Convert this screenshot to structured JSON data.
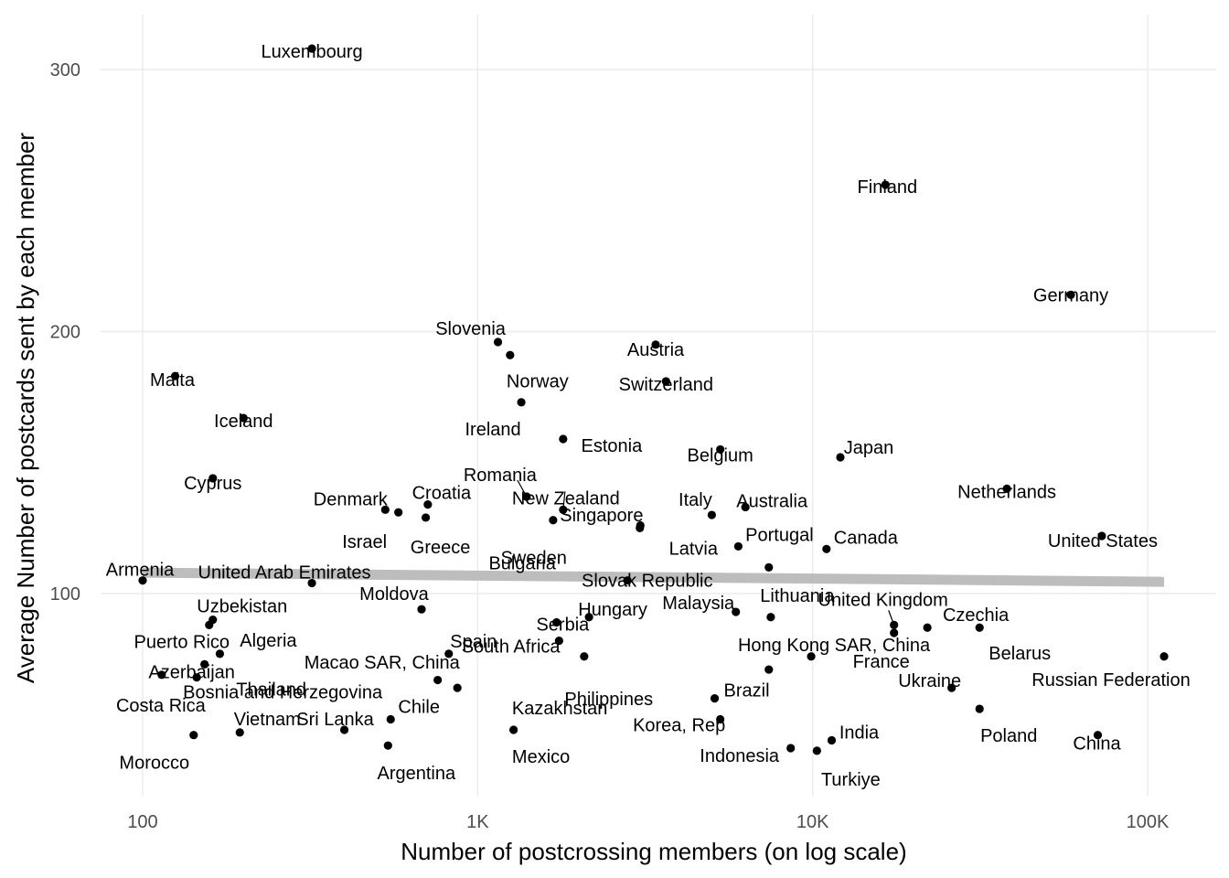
{
  "chart_data": {
    "type": "scatter",
    "xlabel": "Number of postcrossing members (on log scale)",
    "ylabel": "Average Number of postcards sent by each member",
    "x_scale": "log10",
    "xlim": [
      80,
      130000
    ],
    "ylim": [
      22,
      320
    ],
    "x_ticks": [
      {
        "value": 100,
        "label": "100"
      },
      {
        "value": 1000,
        "label": "1K"
      },
      {
        "value": 10000,
        "label": "10K"
      },
      {
        "value": 100000,
        "label": "100K"
      }
    ],
    "y_ticks": [
      {
        "value": 100,
        "label": "100"
      },
      {
        "value": 200,
        "label": "200"
      },
      {
        "value": 300,
        "label": "300"
      }
    ],
    "grid": true,
    "legend": "none",
    "trend_line": {
      "x": [
        100,
        112000
      ],
      "y": [
        108,
        104.5
      ],
      "color": "#bdbdbd"
    },
    "points": [
      {
        "name": "Luxembourg",
        "x": 320,
        "y": 308
      },
      {
        "name": "Finland",
        "x": 16500,
        "y": 256
      },
      {
        "name": "Germany",
        "x": 59000,
        "y": 214
      },
      {
        "name": "Slovenia",
        "x": 1150,
        "y": 196
      },
      {
        "name": "Austria",
        "x": 3400,
        "y": 195
      },
      {
        "name": "Norway",
        "x": 1250,
        "y": 191
      },
      {
        "name": "Malta",
        "x": 125,
        "y": 183
      },
      {
        "name": "Switzerland",
        "x": 3650,
        "y": 181
      },
      {
        "name": "Ireland",
        "x": 1350,
        "y": 173
      },
      {
        "name": "Iceland",
        "x": 200,
        "y": 167
      },
      {
        "name": "Estonia",
        "x": 1800,
        "y": 159
      },
      {
        "name": "Belgium",
        "x": 5300,
        "y": 155
      },
      {
        "name": "Japan",
        "x": 12100,
        "y": 152
      },
      {
        "name": "Cyprus",
        "x": 162,
        "y": 144
      },
      {
        "name": "Netherlands",
        "x": 38000,
        "y": 140
      },
      {
        "name": "Romania",
        "x": 1400,
        "y": 137
      },
      {
        "name": "Croatia",
        "x": 710,
        "y": 134
      },
      {
        "name": "New Zealand",
        "x": 1800,
        "y": 132
      },
      {
        "name": "Australia",
        "x": 6300,
        "y": 133
      },
      {
        "name": "Denmark",
        "x": 530,
        "y": 132
      },
      {
        "name": "Israel",
        "x": 580,
        "y": 131
      },
      {
        "name": "Italy",
        "x": 5000,
        "y": 130
      },
      {
        "name": "Greece",
        "x": 700,
        "y": 129
      },
      {
        "name": "Singapore",
        "x": 1680,
        "y": 128
      },
      {
        "name": "Latvia",
        "x": 3060,
        "y": 126
      },
      {
        "name": "Sweden",
        "x": 3050,
        "y": 125
      },
      {
        "name": "United States",
        "x": 73000,
        "y": 122
      },
      {
        "name": "Portugal",
        "x": 6000,
        "y": 118
      },
      {
        "name": "Canada",
        "x": 11000,
        "y": 117
      },
      {
        "name": "Slovak Republic",
        "x": 7400,
        "y": 110
      },
      {
        "name": "Armenia",
        "x": 100,
        "y": 105
      },
      {
        "name": "United Arab Emirates",
        "x": 320,
        "y": 104
      },
      {
        "name": "Bulgaria",
        "x": 2800,
        "y": 105
      },
      {
        "name": "Moldova",
        "x": 680,
        "y": 94
      },
      {
        "name": "Malaysia",
        "x": 5900,
        "y": 93
      },
      {
        "name": "Hungary",
        "x": 2150,
        "y": 91
      },
      {
        "name": "Lithuania",
        "x": 7500,
        "y": 91
      },
      {
        "name": "Uzbekistan",
        "x": 162,
        "y": 90
      },
      {
        "name": "Puerto Rico",
        "x": 158,
        "y": 88
      },
      {
        "name": "United Kingdom",
        "x": 17500,
        "y": 88
      },
      {
        "name": "South Africa",
        "x": 1720,
        "y": 89
      },
      {
        "name": "Czechia",
        "x": 22000,
        "y": 87
      },
      {
        "name": "Belarus",
        "x": 31500,
        "y": 87
      },
      {
        "name": "France",
        "x": 17500,
        "y": 85
      },
      {
        "name": "Serbia",
        "x": 1750,
        "y": 82
      },
      {
        "name": "Algeria",
        "x": 170,
        "y": 77
      },
      {
        "name": "Spain",
        "x": 2080,
        "y": 76
      },
      {
        "name": "Hong Kong SAR, China",
        "x": 9900,
        "y": 76
      },
      {
        "name": "Russian Federation",
        "x": 112000,
        "y": 76
      },
      {
        "name": "Azerbaijan",
        "x": 153,
        "y": 73
      },
      {
        "name": "Macao SAR, China",
        "x": 820,
        "y": 77
      },
      {
        "name": "Costa Rica",
        "x": 114,
        "y": 69
      },
      {
        "name": "Bosnia and Herzegovina",
        "x": 145,
        "y": 68
      },
      {
        "name": "Philippines",
        "x": 7400,
        "y": 71
      },
      {
        "name": "Thailand",
        "x": 760,
        "y": 67
      },
      {
        "name": "Ukraine",
        "x": 26000,
        "y": 64
      },
      {
        "name": "Brazil",
        "x": 5100,
        "y": 60
      },
      {
        "name": "Kazakhstan",
        "x": 870,
        "y": 64
      },
      {
        "name": "Chile",
        "x": 550,
        "y": 52
      },
      {
        "name": "Korea, Rep",
        "x": 5300,
        "y": 52
      },
      {
        "name": "Poland",
        "x": 31500,
        "y": 56
      },
      {
        "name": "Sri Lanka",
        "x": 400,
        "y": 48
      },
      {
        "name": "Mexico",
        "x": 1280,
        "y": 48
      },
      {
        "name": "Vietnam",
        "x": 195,
        "y": 47
      },
      {
        "name": "Morocco",
        "x": 142,
        "y": 46
      },
      {
        "name": "India",
        "x": 11400,
        "y": 44
      },
      {
        "name": "China",
        "x": 71000,
        "y": 46
      },
      {
        "name": "Argentina",
        "x": 540,
        "y": 42
      },
      {
        "name": "Indonesia",
        "x": 8600,
        "y": 41
      },
      {
        "name": "Turkiye",
        "x": 10300,
        "y": 40
      }
    ]
  }
}
